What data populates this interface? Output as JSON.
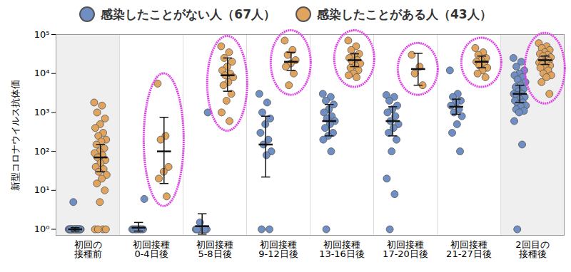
{
  "chart_data": {
    "type": "scatter",
    "y_label": "新型コロナウイルス抗体価",
    "log": "y",
    "legend": "top",
    "categories": [
      "初回の\n接種前",
      "初回接種\n0-4日後",
      "初回接種\n5-8日後",
      "初回接種\n9-12日後",
      "初回接種\n13-16日後",
      "初回接種\n17-20日後",
      "初回接種\n21-27日後",
      "2回目の\n接種後"
    ],
    "ylim": [
      0.7,
      100000
    ],
    "yticks": [
      {
        "value": 1,
        "label": "10⁰"
      },
      {
        "value": 10,
        "label": "10¹"
      },
      {
        "value": 100,
        "label": "10²"
      },
      {
        "value": 1000,
        "label": "10³"
      },
      {
        "value": 10000,
        "label": "10⁴"
      },
      {
        "value": 100000,
        "label": "10⁵"
      }
    ],
    "series": [
      {
        "name": "感染したことがない人（67人）",
        "color": "#6f8fc4",
        "values": [
          [
            1,
            1,
            1,
            1,
            1,
            1,
            1,
            1,
            1,
            1,
            1,
            1,
            1,
            1,
            1,
            1,
            1,
            1,
            1,
            1,
            5
          ],
          [
            1,
            1,
            1,
            1,
            1,
            1,
            1,
            1,
            6
          ],
          [
            1,
            1,
            1,
            1,
            1,
            1,
            1,
            1.5,
            1000
          ],
          [
            3000,
            1800,
            1000,
            700,
            500,
            300,
            200,
            150,
            100,
            80,
            1,
            1
          ],
          [
            3000,
            2500,
            2000,
            1600,
            1200,
            1000,
            800,
            700,
            600,
            500,
            400,
            300,
            250,
            200,
            100,
            1
          ],
          [
            2800,
            2500,
            2000,
            1500,
            1200,
            1000,
            800,
            600,
            500,
            400,
            300,
            200,
            100,
            20,
            8,
            1
          ],
          [
            12000,
            3000,
            2500,
            2000,
            1800,
            1500,
            1200,
            1000,
            800,
            500,
            300,
            100
          ],
          [
            25000,
            20000,
            15000,
            12000,
            10000,
            9000,
            8000,
            7000,
            6000,
            5000,
            4500,
            4000,
            3500,
            3000,
            3000,
            2800,
            2500,
            2200,
            2000,
            1800,
            1600,
            1500,
            1400,
            1200,
            1100,
            1000,
            600,
            150,
            1
          ]
        ],
        "means": [
          1,
          1.1,
          1.2,
          150,
          600,
          600,
          1400,
          3000
        ],
        "error_low": [
          0.9,
          0.9,
          0.75,
          22,
          250,
          250,
          900,
          1800
        ],
        "error_high": [
          1.1,
          1.5,
          2.5,
          800,
          1600,
          1400,
          2200,
          5000
        ]
      },
      {
        "name": "感染したことがある人（43人）",
        "color": "#e0a45e",
        "values": [
          [
            1800,
            1500,
            1000,
            700,
            500,
            400,
            300,
            250,
            200,
            180,
            150,
            120,
            100,
            90,
            80,
            70,
            60,
            50,
            40,
            35,
            30,
            25,
            20,
            15,
            10,
            5,
            1,
            1,
            1,
            1
          ],
          [
            5500,
            250,
            200,
            40,
            30,
            20,
            7
          ],
          [
            50000,
            35000,
            25000,
            20000,
            15000,
            12000,
            10000,
            9000,
            8000,
            6000,
            5000,
            3000,
            2000,
            1000,
            600
          ],
          [
            70000,
            40000,
            30000,
            22000,
            18000,
            15000,
            10000,
            5000
          ],
          [
            70000,
            50000,
            40000,
            32000,
            28000,
            25000,
            22000,
            20000,
            18000,
            16000,
            14000,
            12000,
            10000,
            9000,
            8000
          ],
          [
            30000,
            15000,
            10000,
            5000
          ],
          [
            45000,
            35000,
            30000,
            25000,
            22000,
            20000,
            18000,
            16000,
            14000,
            12000,
            10000,
            8000
          ],
          [
            60000,
            50000,
            45000,
            40000,
            35000,
            32000,
            30000,
            28000,
            26000,
            24000,
            22000,
            21000,
            20000,
            19000,
            18000,
            17000,
            16000,
            15000,
            14000,
            12000,
            10000,
            9000,
            8000,
            6000,
            3000
          ]
        ],
        "means": [
          70,
          100,
          9000,
          20000,
          22000,
          13000,
          20000,
          22000
        ],
        "error_low": [
          30,
          15,
          3500,
          12000,
          15000,
          5000,
          14000,
          17000
        ],
        "error_high": [
          150,
          750,
          25000,
          35000,
          32000,
          33000,
          28000,
          28000
        ]
      }
    ]
  }
}
